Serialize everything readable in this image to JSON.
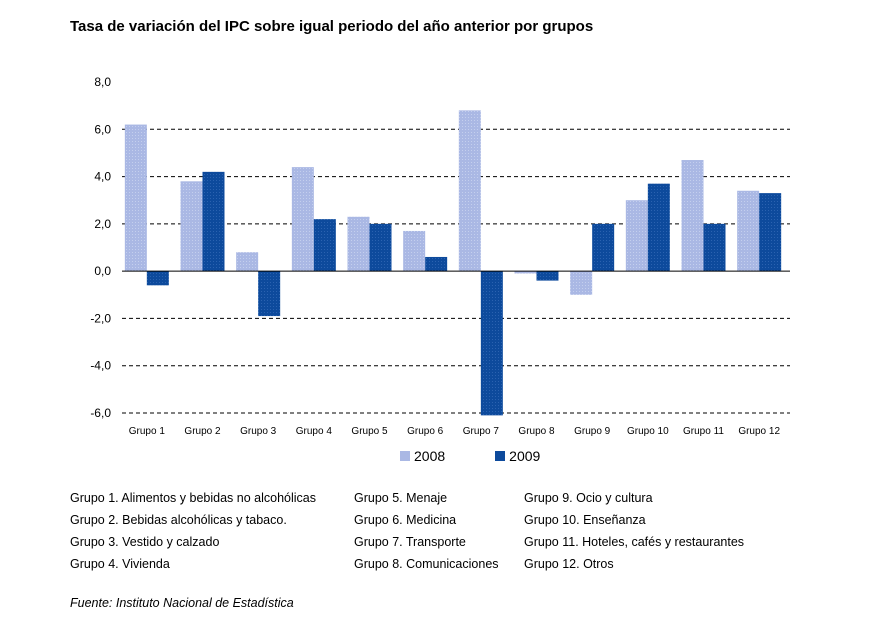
{
  "title": "Tasa de variación del IPC sobre igual periodo del año anterior por grupos",
  "colors": {
    "series_2008": "#aab8e4",
    "series_2009": "#0d4a9c",
    "grid": "#000000"
  },
  "chart_data": {
    "type": "bar",
    "title": "Tasa de variación del IPC sobre igual periodo del año anterior por grupos",
    "categories": [
      "Grupo 1",
      "Grupo 2",
      "Grupo 3",
      "Grupo 4",
      "Grupo 5",
      "Grupo 6",
      "Grupo 7",
      "Grupo 8",
      "Grupo 9",
      "Grupo 10",
      "Grupo 11",
      "Grupo 12"
    ],
    "series": [
      {
        "name": "2008",
        "values": [
          6.2,
          3.8,
          0.8,
          4.4,
          2.3,
          1.7,
          6.8,
          -0.1,
          -1.0,
          3.0,
          4.7,
          3.4
        ]
      },
      {
        "name": "2009",
        "values": [
          -0.6,
          4.2,
          -1.9,
          2.2,
          2.0,
          0.6,
          -6.1,
          -0.4,
          2.0,
          3.7,
          2.0,
          3.3
        ]
      }
    ],
    "yticks": [
      "8,0",
      "6,0",
      "4,0",
      "2,0",
      "0,0",
      "-2,0",
      "-4,0",
      "-6,0"
    ],
    "ylim": [
      -6,
      8
    ],
    "grid": "dashed horizontal",
    "legend": "bottom-center",
    "xlabel": "",
    "ylabel": ""
  },
  "notes": {
    "col1": [
      "Grupo 1. Alimentos y bebidas no alcohólicas",
      "Grupo 2. Bebidas alcohólicas y  tabaco.",
      "Grupo 3. Vestido y calzado",
      "Grupo 4. Vivienda"
    ],
    "col2": [
      "Grupo 5. Menaje",
      "Grupo 6. Medicina",
      "Grupo 7. Transporte",
      "Grupo 8. Comunicaciones"
    ],
    "col3": [
      "Grupo 9. Ocio y cultura",
      "Grupo 10. Enseñanza",
      "Grupo 11. Hoteles, cafés y restaurantes",
      "Grupo 12. Otros"
    ]
  },
  "source": "Fuente: Instituto Nacional de Estadística"
}
